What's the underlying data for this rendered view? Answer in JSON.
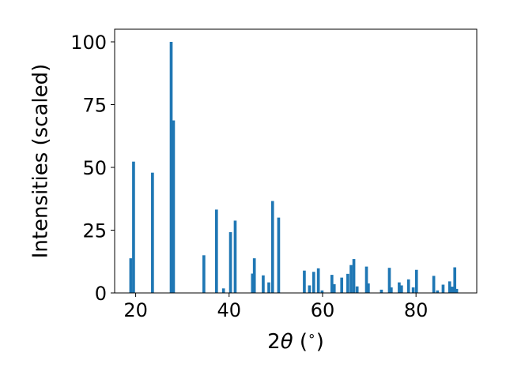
{
  "chart_data": {
    "type": "bar",
    "xlabel_parts": [
      "2",
      "θ",
      " (",
      "∘",
      ")"
    ],
    "ylabel": "Intensities (scaled)",
    "xlim": [
      15.5,
      93
    ],
    "ylim": [
      0,
      100
    ],
    "xticks": [
      20,
      40,
      60,
      80
    ],
    "yticks": [
      0,
      25,
      50,
      75,
      100
    ],
    "grid": false,
    "bar_width": 0.62,
    "bar_color": "#1f77b4",
    "x": [
      18.95,
      19.55,
      23.6,
      27.6,
      28.1,
      34.6,
      37.3,
      38.8,
      40.3,
      41.3,
      45.0,
      45.4,
      47.3,
      48.5,
      49.3,
      50.6,
      56.1,
      57.2,
      58.1,
      59.1,
      59.9,
      62.0,
      62.5,
      64.1,
      65.4,
      66.1,
      66.7,
      67.4,
      69.4,
      69.8,
      72.6,
      74.3,
      74.7,
      76.4,
      76.9,
      78.4,
      79.4,
      80.1,
      83.8,
      84.6,
      85.8,
      87.2,
      87.7,
      88.3,
      88.7
    ],
    "values": [
      13.8,
      52.3,
      47.9,
      100,
      68.7,
      15.0,
      33.2,
      1.8,
      24.2,
      28.8,
      7.7,
      13.8,
      7.0,
      4.2,
      36.6,
      30.0,
      8.9,
      3.0,
      8.4,
      9.8,
      1.0,
      7.2,
      3.5,
      6.1,
      7.6,
      11.1,
      13.5,
      2.6,
      10.5,
      3.8,
      1.3,
      10.0,
      2.2,
      4.2,
      3.0,
      5.4,
      2.2,
      9.2,
      6.8,
      1.0,
      3.3,
      4.6,
      2.5,
      10.2,
      1.6
    ]
  }
}
